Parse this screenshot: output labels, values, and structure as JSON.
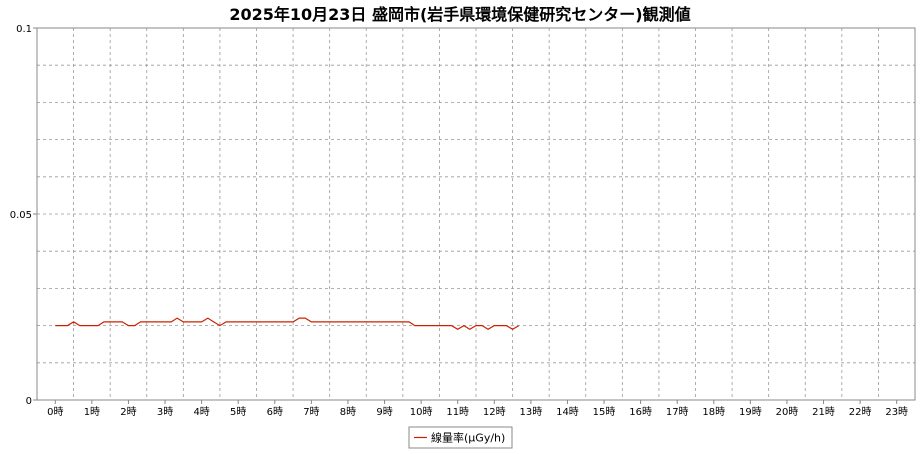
{
  "chart_data": {
    "type": "line",
    "title": "2025年10月23日 盛岡市(岩手県環境保健研究センター)観測値",
    "xlabel": "",
    "ylabel": "",
    "ylim": [
      0,
      0.1
    ],
    "y_ticks": [
      {
        "value": 0,
        "label": "0"
      },
      {
        "value": 0.05,
        "label": "0.05"
      },
      {
        "value": 0.1,
        "label": "0.1"
      }
    ],
    "categories": [
      "0時",
      "1時",
      "2時",
      "3時",
      "4時",
      "5時",
      "6時",
      "7時",
      "8時",
      "9時",
      "10時",
      "11時",
      "12時",
      "13時",
      "14時",
      "15時",
      "16時",
      "17時",
      "18時",
      "19時",
      "20時",
      "21時",
      "22時",
      "23時"
    ],
    "grid": true,
    "legend_position": "bottom-center",
    "series": [
      {
        "name": "線量率(μGy/h)",
        "color": "#cc2200",
        "x": [
          0.0,
          0.17,
          0.33,
          0.5,
          0.67,
          0.83,
          1.0,
          1.17,
          1.33,
          1.5,
          1.67,
          1.83,
          2.0,
          2.17,
          2.33,
          2.5,
          2.67,
          2.83,
          3.0,
          3.17,
          3.33,
          3.5,
          3.67,
          3.83,
          4.0,
          4.17,
          4.33,
          4.5,
          4.67,
          4.83,
          5.0,
          5.17,
          5.33,
          5.5,
          5.67,
          5.83,
          6.0,
          6.17,
          6.33,
          6.5,
          6.67,
          6.83,
          7.0,
          7.17,
          7.33,
          7.5,
          7.67,
          7.83,
          8.0,
          8.17,
          8.33,
          8.5,
          8.67,
          8.83,
          9.0,
          9.17,
          9.33,
          9.5,
          9.67,
          9.83,
          10.0,
          10.17,
          10.33,
          10.5,
          10.67,
          10.83,
          11.0,
          11.17,
          11.33,
          11.5,
          11.67,
          11.83,
          12.0,
          12.17,
          12.33,
          12.5,
          12.67
        ],
        "values": [
          0.02,
          0.02,
          0.02,
          0.021,
          0.02,
          0.02,
          0.02,
          0.02,
          0.021,
          0.021,
          0.021,
          0.021,
          0.02,
          0.02,
          0.021,
          0.021,
          0.021,
          0.021,
          0.021,
          0.021,
          0.022,
          0.021,
          0.021,
          0.021,
          0.021,
          0.022,
          0.021,
          0.02,
          0.021,
          0.021,
          0.021,
          0.021,
          0.021,
          0.021,
          0.021,
          0.021,
          0.021,
          0.021,
          0.021,
          0.021,
          0.022,
          0.022,
          0.021,
          0.021,
          0.021,
          0.021,
          0.021,
          0.021,
          0.021,
          0.021,
          0.021,
          0.021,
          0.021,
          0.021,
          0.021,
          0.021,
          0.021,
          0.021,
          0.021,
          0.02,
          0.02,
          0.02,
          0.02,
          0.02,
          0.02,
          0.02,
          0.019,
          0.02,
          0.019,
          0.02,
          0.02,
          0.019,
          0.02,
          0.02,
          0.02,
          0.019,
          0.02
        ]
      }
    ]
  }
}
